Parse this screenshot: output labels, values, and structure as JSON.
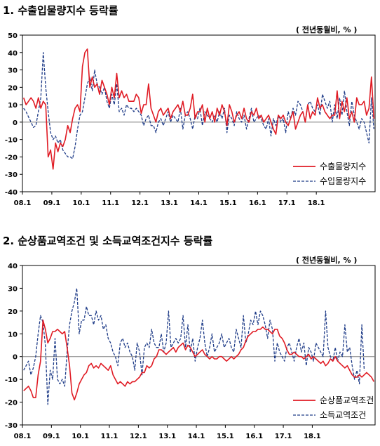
{
  "charts": [
    {
      "title": "1. 수출입물량지수 등락률",
      "unit_note": "( 전년동월비, % )"
    },
    {
      "title": "2. 순상품교역조건 및 소득교역조건지수 등락률",
      "unit_note": "( 전년동월비, % )"
    }
  ],
  "chart_data": [
    {
      "type": "line",
      "title": "1. 수출입물량지수 등락률",
      "ylabel": "( 전년동월비, % )",
      "x_tick_labels": [
        "08.1",
        "09.1",
        "10.1",
        "11.1",
        "12.1",
        "13.1",
        "14.1",
        "15.1",
        "16.1",
        "17.1",
        "18.1"
      ],
      "x_range": [
        "2008-01",
        "2018-12"
      ],
      "ylim": [
        -40,
        50
      ],
      "y_ticks": [
        -40,
        -30,
        -20,
        -10,
        0,
        10,
        20,
        30,
        40,
        50
      ],
      "legend_position": "bottom-right",
      "series": [
        {
          "name": "수출물량지수",
          "color": "#e01b24",
          "style": "solid",
          "values": [
            14,
            10,
            12,
            14,
            12,
            8,
            14,
            8,
            12,
            10,
            -20,
            -16,
            -27,
            -12,
            -17,
            -12,
            -14,
            -10,
            -2,
            -6,
            2,
            8,
            10,
            6,
            32,
            40,
            42,
            20,
            26,
            20,
            22,
            16,
            24,
            20,
            16,
            10,
            20,
            14,
            28,
            14,
            18,
            14,
            16,
            12,
            12,
            12,
            16,
            14,
            5,
            10,
            10,
            22,
            8,
            4,
            0,
            6,
            8,
            4,
            6,
            8,
            2,
            6,
            8,
            10,
            6,
            12,
            4,
            4,
            8,
            16,
            2,
            6,
            6,
            10,
            0,
            8,
            2,
            6,
            0,
            8,
            4,
            10,
            6,
            -2,
            10,
            6,
            0,
            4,
            6,
            2,
            8,
            2,
            0,
            6,
            4,
            8,
            2,
            4,
            0,
            2,
            4,
            0,
            -4,
            -7,
            4,
            2,
            4,
            0,
            -2,
            2,
            6,
            -4,
            0,
            4,
            6,
            0,
            10,
            2,
            6,
            4,
            14,
            8,
            10,
            6,
            4,
            2,
            4,
            4,
            18,
            2,
            12,
            6,
            14,
            2,
            6,
            0,
            14,
            10,
            10,
            12,
            4,
            8,
            26,
            2
          ]
        },
        {
          "name": "수입물량지수",
          "color": "#1f3c88",
          "style": "dashed",
          "values": [
            8,
            6,
            3,
            0,
            -3,
            -2,
            6,
            14,
            40,
            20,
            6,
            -6,
            -10,
            -8,
            -12,
            -10,
            -16,
            -18,
            -20,
            -20,
            -21,
            -14,
            -4,
            4,
            6,
            14,
            22,
            26,
            18,
            30,
            22,
            20,
            16,
            20,
            12,
            8,
            16,
            10,
            22,
            6,
            8,
            4,
            10,
            8,
            8,
            6,
            8,
            6,
            4,
            -2,
            2,
            4,
            -2,
            -2,
            -6,
            0,
            2,
            -2,
            2,
            6,
            0,
            4,
            2,
            0,
            8,
            -4,
            4,
            6,
            2,
            -4,
            4,
            2,
            8,
            -2,
            6,
            4,
            2,
            0,
            4,
            0,
            6,
            2,
            8,
            -6,
            4,
            2,
            -2,
            6,
            2,
            0,
            4,
            -4,
            2,
            8,
            0,
            2,
            4,
            2,
            -2,
            -4,
            2,
            -8,
            2,
            -2,
            4,
            0,
            2,
            -6,
            6,
            2,
            8,
            4,
            12,
            10,
            6,
            0,
            10,
            12,
            8,
            6,
            10,
            4,
            16,
            12,
            8,
            12,
            0,
            10,
            2,
            14,
            4,
            18,
            6,
            -2,
            12,
            4,
            0,
            -4,
            2,
            0,
            -6,
            -12,
            14,
            -4
          ]
        }
      ]
    },
    {
      "type": "line",
      "title": "2. 순상품교역조건 및 소득교역조건지수 등락률",
      "ylabel": "( 전년동월비, % )",
      "x_tick_labels": [
        "08.1",
        "09.1",
        "10.1",
        "11.1",
        "12.1",
        "13.1",
        "14.1",
        "15.1",
        "16.1",
        "17.1",
        "18.1"
      ],
      "x_range": [
        "2008-01",
        "2018-12"
      ],
      "ylim": [
        -30,
        40
      ],
      "y_ticks": [
        -30,
        -20,
        -10,
        0,
        10,
        20,
        30,
        40
      ],
      "legend_position": "bottom-right",
      "series": [
        {
          "name": "순상품교역조건",
          "color": "#e01b24",
          "style": "solid",
          "values": [
            -15,
            -14,
            -13,
            -15,
            -18,
            -18,
            -8,
            -2,
            16,
            12,
            6,
            8,
            11,
            11,
            12,
            11,
            10,
            11,
            4,
            -4,
            -16,
            -19,
            -16,
            -12,
            -10,
            -8,
            -7,
            -4,
            -3,
            -5,
            -4,
            -5,
            -3,
            -4,
            -5,
            -6,
            -4,
            -8,
            -10,
            -12,
            -11,
            -12,
            -13,
            -11,
            -12,
            -11,
            -11,
            -10,
            -9,
            -7,
            -7,
            -4,
            -5,
            -4,
            -1,
            0,
            3,
            3,
            2,
            1,
            2,
            3,
            4,
            2,
            4,
            5,
            6,
            3,
            5,
            4,
            2,
            0,
            1,
            2,
            3,
            1,
            0,
            -1,
            0,
            -1,
            -1,
            0,
            0,
            -1,
            -2,
            -1,
            0,
            -1,
            0,
            1,
            3,
            4,
            7,
            9,
            10,
            11,
            11,
            12,
            12,
            13,
            12,
            12,
            11,
            10,
            12,
            12,
            9,
            8,
            6,
            3,
            1,
            1,
            2,
            1,
            0,
            0,
            -1,
            0,
            1,
            -1,
            0,
            -1,
            -2,
            -3,
            -2,
            -4,
            -3,
            -1,
            -2,
            0,
            -2,
            -3,
            -4,
            -5,
            -4,
            -6,
            -8,
            -9,
            -9,
            -8,
            -9,
            -8,
            -7,
            -8,
            -9,
            -11
          ]
        },
        {
          "name": "소득교역조건",
          "color": "#1f3c88",
          "style": "dashed",
          "values": [
            -6,
            -4,
            -2,
            -8,
            -5,
            0,
            10,
            18,
            15,
            5,
            -21,
            -6,
            -10,
            8,
            -10,
            -12,
            -10,
            -13,
            2,
            14,
            20,
            24,
            30,
            10,
            16,
            16,
            22,
            18,
            18,
            14,
            20,
            16,
            18,
            12,
            14,
            8,
            6,
            2,
            0,
            -4,
            6,
            8,
            4,
            6,
            2,
            0,
            -6,
            6,
            2,
            -8,
            4,
            6,
            4,
            12,
            6,
            4,
            4,
            10,
            2,
            6,
            20,
            4,
            6,
            8,
            6,
            8,
            18,
            4,
            14,
            2,
            8,
            -2,
            4,
            8,
            16,
            6,
            0,
            4,
            10,
            2,
            4,
            6,
            10,
            4,
            6,
            8,
            4,
            2,
            12,
            8,
            4,
            18,
            6,
            10,
            16,
            14,
            20,
            14,
            20,
            18,
            14,
            8,
            16,
            12,
            -2,
            6,
            2,
            0,
            -2,
            4,
            6,
            2,
            -2,
            4,
            8,
            2,
            6,
            -4,
            4,
            2,
            -2,
            6,
            4,
            2,
            0,
            20,
            4,
            0,
            -2,
            4,
            -2,
            2,
            0,
            14,
            2,
            4,
            -4,
            -10,
            -6,
            -12,
            14,
            -6
          ]
        }
      ]
    }
  ]
}
